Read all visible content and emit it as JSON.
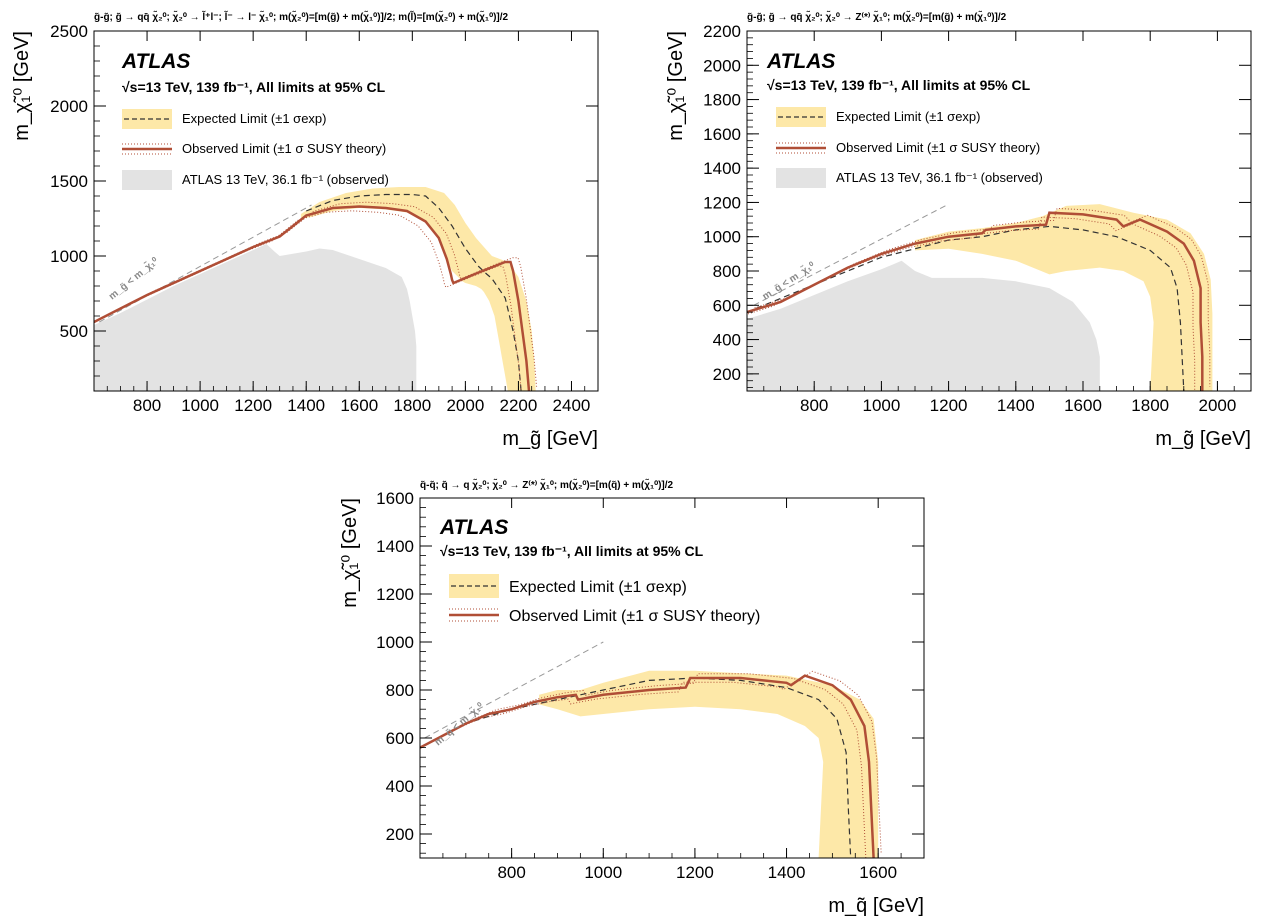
{
  "colors": {
    "band": "#fde8a8",
    "observed": "#b04e36",
    "expected": "#333333",
    "previous": "#e3e3e3",
    "kinematic": "#999999"
  },
  "chart_data": [
    {
      "type": "area",
      "process": "g̃-g̃;  g̃ → qq̄ χ̃₂⁰;  χ̃₂⁰ → l̃⁺l⁻;  l̃⁻ → l⁻ χ̃₁⁰;  m(χ̃₂⁰)=[m(g̃) + m(χ̃₁⁰)]/2;  m(l̃)=[m(χ̃₂⁰) + m(χ̃₁⁰)]/2",
      "atlas": "ATLAS",
      "energy_label": "√s=13 TeV, 139 fb⁻¹, All limits at 95% CL",
      "xlabel": "m_g̃ [GeV]",
      "ylabel": "m_χ̃₁⁰ [GeV]",
      "xlim": [
        600,
        2500
      ],
      "ylim": [
        100,
        2500
      ],
      "xticks": [
        "800",
        "1000",
        "1200",
        "1400",
        "1600",
        "1800",
        "2000",
        "2200",
        "2400"
      ],
      "xtick_values": [
        800,
        1000,
        1200,
        1400,
        1600,
        1800,
        2000,
        2200,
        2400
      ],
      "yticks": [
        "500",
        "1000",
        "1500",
        "2000",
        "2500"
      ],
      "ytick_values": [
        500,
        1000,
        1500,
        2000,
        2500
      ],
      "kinematic_label": "m_g̃ < m_χ̃₁⁰",
      "kinematic_line": [
        [
          620,
          560
        ],
        [
          1420,
          1340
        ]
      ],
      "legend": [
        "Expected Limit (±1 σexp)",
        "Observed Limit (±1 σ SUSY theory)",
        "ATLAS 13 TeV, 36.1 fb⁻¹ (observed)"
      ],
      "observed": [
        [
          600,
          560
        ],
        [
          700,
          650
        ],
        [
          800,
          740
        ],
        [
          1000,
          900
        ],
        [
          1200,
          1060
        ],
        [
          1300,
          1130
        ],
        [
          1400,
          1270
        ],
        [
          1500,
          1320
        ],
        [
          1600,
          1330
        ],
        [
          1700,
          1320
        ],
        [
          1780,
          1300
        ],
        [
          1850,
          1230
        ],
        [
          1900,
          1120
        ],
        [
          1930,
          980
        ],
        [
          1945,
          880
        ],
        [
          1950,
          840
        ],
        [
          1955,
          820
        ],
        [
          2050,
          890
        ],
        [
          2150,
          960
        ],
        [
          2170,
          960
        ],
        [
          2180,
          900
        ],
        [
          2200,
          700
        ],
        [
          2215,
          500
        ],
        [
          2230,
          300
        ],
        [
          2240,
          100
        ]
      ],
      "expected": [
        [
          1400,
          1300
        ],
        [
          1500,
          1370
        ],
        [
          1600,
          1400
        ],
        [
          1700,
          1410
        ],
        [
          1800,
          1410
        ],
        [
          1850,
          1400
        ],
        [
          1900,
          1320
        ],
        [
          1950,
          1200
        ],
        [
          2000,
          1050
        ],
        [
          2050,
          930
        ],
        [
          2080,
          880
        ],
        [
          2100,
          850
        ],
        [
          2150,
          720
        ],
        [
          2180,
          500
        ],
        [
          2200,
          300
        ],
        [
          2210,
          100
        ]
      ],
      "band": [
        [
          1380,
          1280
        ],
        [
          1450,
          1360
        ],
        [
          1550,
          1420
        ],
        [
          1650,
          1450
        ],
        [
          1750,
          1460
        ],
        [
          1850,
          1460
        ],
        [
          1920,
          1420
        ],
        [
          1960,
          1340
        ],
        [
          2000,
          1220
        ],
        [
          2040,
          1120
        ],
        [
          2070,
          1060
        ],
        [
          2100,
          1000
        ],
        [
          2160,
          960
        ],
        [
          2200,
          860
        ],
        [
          2230,
          700
        ],
        [
          2250,
          500
        ],
        [
          2260,
          300
        ],
        [
          2265,
          100
        ],
        [
          2160,
          100
        ],
        [
          2150,
          200
        ],
        [
          2140,
          300
        ],
        [
          2130,
          400
        ],
        [
          2120,
          500
        ],
        [
          2110,
          600
        ],
        [
          2090,
          700
        ],
        [
          2070,
          760
        ],
        [
          2060,
          780
        ],
        [
          2040,
          800
        ],
        [
          2000,
          820
        ],
        [
          1990,
          830
        ],
        [
          1950,
          900
        ],
        [
          1920,
          1020
        ],
        [
          1900,
          1120
        ],
        [
          1850,
          1230
        ],
        [
          1780,
          1290
        ],
        [
          1700,
          1310
        ],
        [
          1600,
          1320
        ],
        [
          1500,
          1300
        ],
        [
          1420,
          1260
        ],
        [
          1380,
          1250
        ]
      ],
      "previous": [
        [
          600,
          540
        ],
        [
          700,
          620
        ],
        [
          900,
          800
        ],
        [
          1100,
          960
        ],
        [
          1200,
          1040
        ],
        [
          1250,
          1080
        ],
        [
          1280,
          1030
        ],
        [
          1300,
          1000
        ],
        [
          1400,
          1030
        ],
        [
          1450,
          1050
        ],
        [
          1500,
          1040
        ],
        [
          1600,
          980
        ],
        [
          1700,
          920
        ],
        [
          1760,
          860
        ],
        [
          1780,
          780
        ],
        [
          1790,
          700
        ],
        [
          1800,
          600
        ],
        [
          1810,
          500
        ],
        [
          1815,
          400
        ],
        [
          1815,
          300
        ],
        [
          1815,
          200
        ],
        [
          1815,
          100
        ],
        [
          600,
          100
        ]
      ]
    },
    {
      "type": "area",
      "process": "g̃-g̃;  g̃ → qq̄ χ̃₂⁰;  χ̃₂⁰ → Z⁽*⁾ χ̃₁⁰;  m(χ̃₂⁰)=[m(g̃) + m(χ̃₁⁰)]/2",
      "atlas": "ATLAS",
      "energy_label": "√s=13 TeV, 139 fb⁻¹, All limits at 95% CL",
      "xlabel": "m_g̃ [GeV]",
      "ylabel": "m_χ̃₁⁰ [GeV]",
      "xlim": [
        600,
        2100
      ],
      "ylim": [
        100,
        2200
      ],
      "xticks": [
        "800",
        "1000",
        "1200",
        "1400",
        "1600",
        "1800",
        "2000"
      ],
      "xtick_values": [
        800,
        1000,
        1200,
        1400,
        1600,
        1800,
        2000
      ],
      "yticks": [
        "200",
        "400",
        "600",
        "800",
        "1000",
        "1200",
        "1400",
        "1600",
        "1800",
        "2000",
        "2200"
      ],
      "ytick_values": [
        200,
        400,
        600,
        800,
        1000,
        1200,
        1400,
        1600,
        1800,
        2000,
        2200
      ],
      "kinematic_label": "m_g̃ < m_χ̃₁⁰",
      "kinematic_line": [
        [
          620,
          600
        ],
        [
          1200,
          1190
        ]
      ],
      "legend": [
        "Expected Limit (±1 σexp)",
        "Observed Limit (±1 σ SUSY theory)",
        "ATLAS 13 TeV, 36.1 fb⁻¹ (observed)"
      ],
      "observed": [
        [
          600,
          560
        ],
        [
          700,
          620
        ],
        [
          800,
          720
        ],
        [
          900,
          820
        ],
        [
          1000,
          900
        ],
        [
          1100,
          960
        ],
        [
          1200,
          1000
        ],
        [
          1300,
          1020
        ],
        [
          1310,
          1040
        ],
        [
          1400,
          1060
        ],
        [
          1490,
          1070
        ],
        [
          1500,
          1140
        ],
        [
          1600,
          1130
        ],
        [
          1700,
          1100
        ],
        [
          1720,
          1060
        ],
        [
          1770,
          1100
        ],
        [
          1850,
          1030
        ],
        [
          1900,
          960
        ],
        [
          1930,
          860
        ],
        [
          1950,
          700
        ],
        [
          1950,
          500
        ],
        [
          1955,
          300
        ],
        [
          1955,
          100
        ]
      ],
      "expected": [
        [
          600,
          560
        ],
        [
          800,
          720
        ],
        [
          1000,
          880
        ],
        [
          1200,
          980
        ],
        [
          1300,
          1000
        ],
        [
          1400,
          1040
        ],
        [
          1500,
          1060
        ],
        [
          1600,
          1040
        ],
        [
          1700,
          1000
        ],
        [
          1800,
          920
        ],
        [
          1860,
          820
        ],
        [
          1880,
          700
        ],
        [
          1890,
          500
        ],
        [
          1895,
          300
        ],
        [
          1900,
          100
        ]
      ],
      "band": [
        [
          1100,
          980
        ],
        [
          1200,
          1030
        ],
        [
          1300,
          1050
        ],
        [
          1400,
          1080
        ],
        [
          1480,
          1120
        ],
        [
          1550,
          1180
        ],
        [
          1650,
          1190
        ],
        [
          1750,
          1140
        ],
        [
          1850,
          1100
        ],
        [
          1920,
          1020
        ],
        [
          1960,
          900
        ],
        [
          1980,
          750
        ],
        [
          1985,
          550
        ],
        [
          1985,
          300
        ],
        [
          1985,
          100
        ],
        [
          1800,
          100
        ],
        [
          1805,
          300
        ],
        [
          1810,
          500
        ],
        [
          1800,
          650
        ],
        [
          1780,
          740
        ],
        [
          1720,
          800
        ],
        [
          1650,
          820
        ],
        [
          1550,
          800
        ],
        [
          1500,
          780
        ],
        [
          1400,
          860
        ],
        [
          1300,
          900
        ],
        [
          1200,
          930
        ],
        [
          1100,
          920
        ]
      ],
      "previous": [
        [
          600,
          520
        ],
        [
          700,
          580
        ],
        [
          800,
          660
        ],
        [
          900,
          740
        ],
        [
          1000,
          810
        ],
        [
          1060,
          860
        ],
        [
          1100,
          800
        ],
        [
          1150,
          760
        ],
        [
          1200,
          760
        ],
        [
          1300,
          760
        ],
        [
          1400,
          740
        ],
        [
          1500,
          700
        ],
        [
          1570,
          620
        ],
        [
          1620,
          500
        ],
        [
          1640,
          400
        ],
        [
          1650,
          300
        ],
        [
          1650,
          100
        ],
        [
          600,
          100
        ]
      ]
    },
    {
      "type": "area",
      "process": "q̃-q̃;  q̃ → q χ̃₂⁰;  χ̃₂⁰ → Z⁽*⁾ χ̃₁⁰;  m(χ̃₂⁰)=[m(q̃) + m(χ̃₁⁰)]/2",
      "atlas": "ATLAS",
      "energy_label": "√s=13 TeV, 139 fb⁻¹, All limits at 95% CL",
      "xlabel": "m_q̃ [GeV]",
      "ylabel": "m_χ̃₁⁰ [GeV]",
      "xlim": [
        600,
        1700
      ],
      "ylim": [
        100,
        1600
      ],
      "xticks": [
        "800",
        "1000",
        "1200",
        "1400",
        "1600"
      ],
      "xtick_values": [
        800,
        1000,
        1200,
        1400,
        1600
      ],
      "yticks": [
        "200",
        "400",
        "600",
        "800",
        "1000",
        "1200",
        "1400",
        "1600"
      ],
      "ytick_values": [
        200,
        400,
        600,
        800,
        1000,
        1200,
        1400,
        1600
      ],
      "kinematic_label": "m_q̃ < m_χ̃₁⁰",
      "kinematic_line": [
        [
          610,
          600
        ],
        [
          1000,
          1000
        ]
      ],
      "legend": [
        "Expected Limit (±1 σexp)",
        "Observed Limit (±1 σ SUSY theory)"
      ],
      "observed": [
        [
          600,
          560
        ],
        [
          650,
          610
        ],
        [
          700,
          660
        ],
        [
          750,
          700
        ],
        [
          800,
          720
        ],
        [
          850,
          750
        ],
        [
          900,
          770
        ],
        [
          940,
          780
        ],
        [
          945,
          760
        ],
        [
          1000,
          780
        ],
        [
          1100,
          800
        ],
        [
          1180,
          810
        ],
        [
          1190,
          850
        ],
        [
          1300,
          850
        ],
        [
          1400,
          830
        ],
        [
          1410,
          820
        ],
        [
          1440,
          860
        ],
        [
          1500,
          820
        ],
        [
          1540,
          760
        ],
        [
          1570,
          650
        ],
        [
          1580,
          500
        ],
        [
          1585,
          300
        ],
        [
          1590,
          100
        ]
      ],
      "expected": [
        [
          600,
          560
        ],
        [
          700,
          660
        ],
        [
          800,
          720
        ],
        [
          900,
          760
        ],
        [
          1000,
          800
        ],
        [
          1100,
          840
        ],
        [
          1200,
          850
        ],
        [
          1300,
          840
        ],
        [
          1400,
          810
        ],
        [
          1470,
          760
        ],
        [
          1510,
          680
        ],
        [
          1530,
          540
        ],
        [
          1535,
          300
        ],
        [
          1540,
          100
        ]
      ],
      "band": [
        [
          860,
          780
        ],
        [
          900,
          800
        ],
        [
          950,
          800
        ],
        [
          1000,
          830
        ],
        [
          1100,
          880
        ],
        [
          1200,
          880
        ],
        [
          1300,
          870
        ],
        [
          1400,
          860
        ],
        [
          1500,
          820
        ],
        [
          1560,
          760
        ],
        [
          1590,
          680
        ],
        [
          1600,
          500
        ],
        [
          1600,
          300
        ],
        [
          1600,
          100
        ],
        [
          1470,
          100
        ],
        [
          1475,
          300
        ],
        [
          1480,
          500
        ],
        [
          1470,
          600
        ],
        [
          1440,
          650
        ],
        [
          1380,
          700
        ],
        [
          1300,
          720
        ],
        [
          1200,
          730
        ],
        [
          1100,
          720
        ],
        [
          1000,
          700
        ],
        [
          950,
          690
        ],
        [
          900,
          720
        ],
        [
          860,
          740
        ]
      ]
    }
  ]
}
